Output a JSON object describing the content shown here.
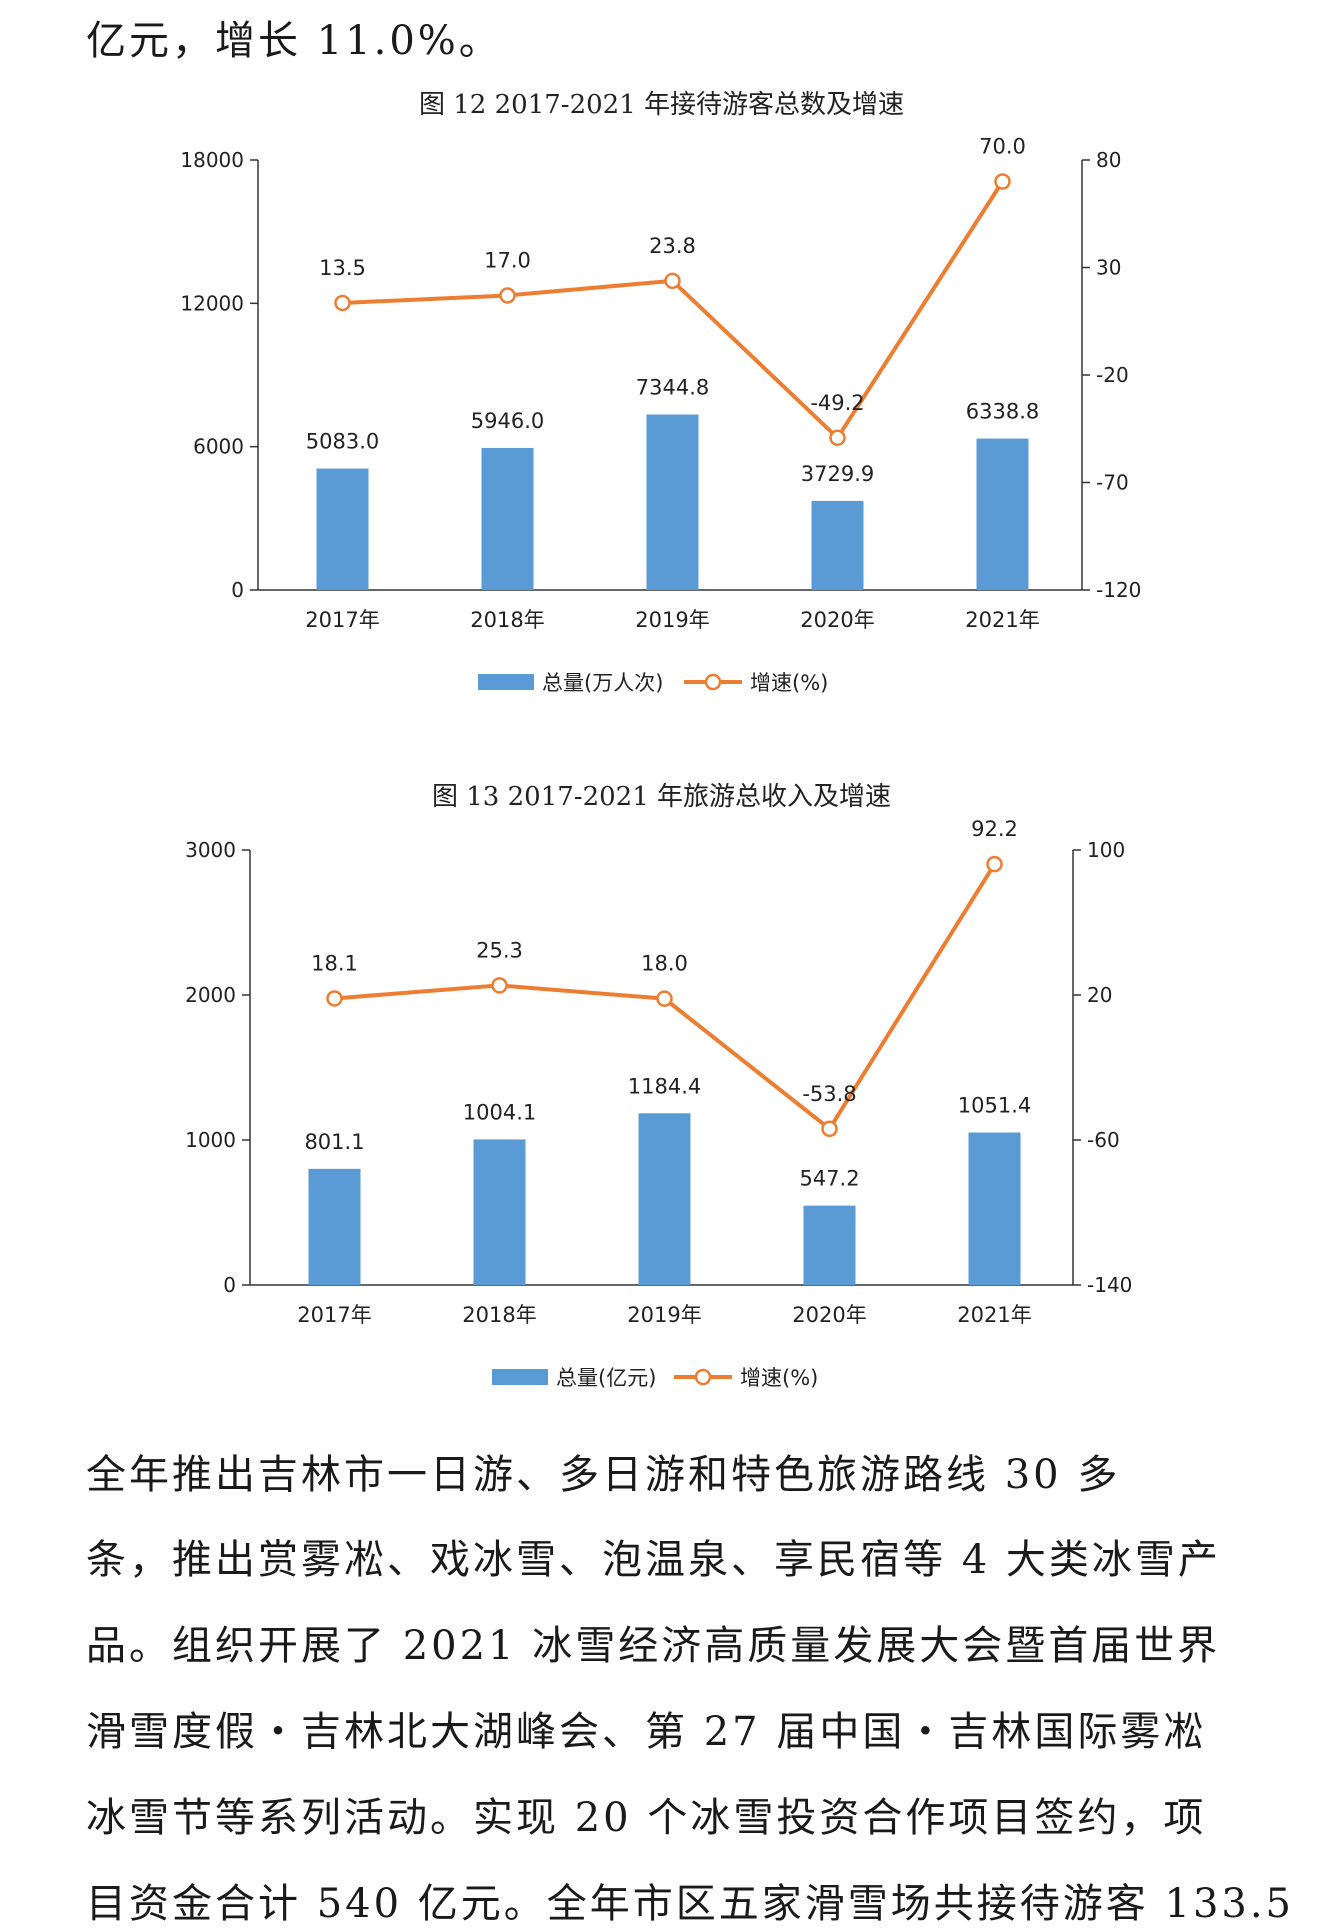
{
  "top_text": "亿元，增长 11.0%。",
  "charts": [
    {
      "title": "图 12  2017-2021 年接待游客总数及增速",
      "legend": {
        "bar": "总量(万人次)",
        "line": "增速(%)"
      }
    },
    {
      "title": "图 13  2017-2021 年旅游总收入及增速",
      "legend": {
        "bar": "总量(亿元)",
        "line": "增速(%)"
      }
    }
  ],
  "colors": {
    "bar": "#5B9BD5",
    "line": "#ED7D31"
  },
  "chart_data": [
    {
      "type": "bar",
      "title": "图 12  2017-2021 年接待游客总数及增速",
      "categories": [
        "2017年",
        "2018年",
        "2019年",
        "2020年",
        "2021年"
      ],
      "series": [
        {
          "name": "总量(万人次)",
          "type": "bar",
          "axis": "left",
          "values": [
            5083.0,
            5946.0,
            7344.8,
            3729.9,
            6338.8
          ],
          "labels": [
            "5083.0",
            "5946.0",
            "7344.8",
            "3729.9",
            "6338.8"
          ]
        },
        {
          "name": "增速(%)",
          "type": "line",
          "axis": "right",
          "values": [
            13.5,
            17.0,
            23.8,
            -49.2,
            70.0
          ],
          "labels": [
            "13.5",
            "17.0",
            "23.8",
            "-49.2",
            "70.0"
          ]
        }
      ],
      "left_axis": {
        "min": 0,
        "max": 18000,
        "ticks": [
          0,
          6000,
          12000,
          18000
        ],
        "tick_labels": [
          "0",
          "6000",
          "12000",
          "18000"
        ]
      },
      "right_axis": {
        "min": -120,
        "max": 80,
        "ticks": [
          -120,
          -70,
          -20,
          30,
          80
        ],
        "tick_labels": [
          "-120",
          "-70",
          "-20",
          "30",
          "80"
        ]
      },
      "legend_position": "bottom"
    },
    {
      "type": "bar",
      "title": "图 13  2017-2021 年旅游总收入及增速",
      "categories": [
        "2017年",
        "2018年",
        "2019年",
        "2020年",
        "2021年"
      ],
      "series": [
        {
          "name": "总量(亿元)",
          "type": "bar",
          "axis": "left",
          "values": [
            801.1,
            1004.1,
            1184.4,
            547.2,
            1051.4
          ],
          "labels": [
            "801.1",
            "1004.1",
            "1184.4",
            "547.2",
            "1051.4"
          ]
        },
        {
          "name": "增速(%)",
          "type": "line",
          "axis": "right",
          "values": [
            18.1,
            25.3,
            18.0,
            -53.8,
            92.2
          ],
          "labels": [
            "18.1",
            "25.3",
            "18.0",
            "-53.8",
            "92.2"
          ]
        }
      ],
      "left_axis": {
        "min": 0,
        "max": 3000,
        "ticks": [
          0,
          1000,
          2000,
          3000
        ],
        "tick_labels": [
          "0",
          "1000",
          "2000",
          "3000"
        ]
      },
      "right_axis": {
        "min": -140,
        "max": 100,
        "ticks": [
          -140,
          -60,
          20,
          100
        ],
        "tick_labels": [
          "-140",
          "-60",
          "20",
          "100"
        ]
      },
      "legend_position": "bottom"
    }
  ],
  "paragraph_lines": [
    "全年推出吉林市一日游、多日游和特色旅游路线 30 多",
    "条，推出赏雾凇、戏冰雪、泡温泉、享民宿等 4 大类冰雪产",
    "品。组织开展了 2021 冰雪经济高质量发展大会暨首届世界",
    "滑雪度假・吉林北大湖峰会、第 27 届中国・吉林国际雾凇",
    "冰雪节等系列活动。实现 20 个冰雪投资合作项目签约，项",
    "目资金合计 540 亿元。全年市区五家滑雪场共接待游客 133.5"
  ]
}
